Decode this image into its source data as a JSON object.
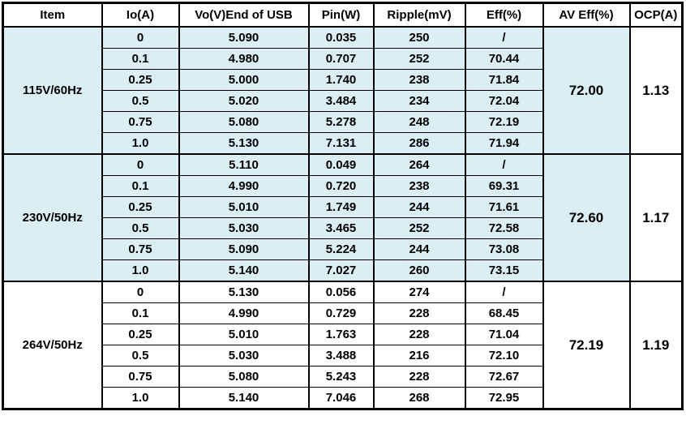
{
  "chart_data": {
    "type": "table",
    "columns": [
      "Item",
      "Io(A)",
      "Vo(V)End of USB",
      "Pin(W)",
      "Ripple(mV)",
      "Eff(%)",
      "AV Eff(%)",
      "OCP(A)"
    ],
    "groups": [
      {
        "item": "115V/60Hz",
        "highlighted": true,
        "av_eff": "72.00",
        "ocp": "1.13",
        "rows": [
          {
            "io": "0",
            "vo": "5.090",
            "pin": "0.035",
            "ripple": "250",
            "eff": "/"
          },
          {
            "io": "0.1",
            "vo": "4.980",
            "pin": "0.707",
            "ripple": "252",
            "eff": "70.44"
          },
          {
            "io": "0.25",
            "vo": "5.000",
            "pin": "1.740",
            "ripple": "238",
            "eff": "71.84"
          },
          {
            "io": "0.5",
            "vo": "5.020",
            "pin": "3.484",
            "ripple": "234",
            "eff": "72.04"
          },
          {
            "io": "0.75",
            "vo": "5.080",
            "pin": "5.278",
            "ripple": "248",
            "eff": "72.19"
          },
          {
            "io": "1.0",
            "vo": "5.130",
            "pin": "7.131",
            "ripple": "286",
            "eff": "71.94"
          }
        ]
      },
      {
        "item": "230V/50Hz",
        "highlighted": true,
        "av_eff": "72.60",
        "ocp": "1.17",
        "rows": [
          {
            "io": "0",
            "vo": "5.110",
            "pin": "0.049",
            "ripple": "264",
            "eff": "/"
          },
          {
            "io": "0.1",
            "vo": "4.990",
            "pin": "0.720",
            "ripple": "238",
            "eff": "69.31"
          },
          {
            "io": "0.25",
            "vo": "5.010",
            "pin": "1.749",
            "ripple": "244",
            "eff": "71.61"
          },
          {
            "io": "0.5",
            "vo": "5.030",
            "pin": "3.465",
            "ripple": "252",
            "eff": "72.58"
          },
          {
            "io": "0.75",
            "vo": "5.090",
            "pin": "5.224",
            "ripple": "244",
            "eff": "73.08"
          },
          {
            "io": "1.0",
            "vo": "5.140",
            "pin": "7.027",
            "ripple": "260",
            "eff": "73.15"
          }
        ]
      },
      {
        "item": "264V/50Hz",
        "highlighted": false,
        "av_eff": "72.19",
        "ocp": "1.19",
        "rows": [
          {
            "io": "0",
            "vo": "5.130",
            "pin": "0.056",
            "ripple": "274",
            "eff": "/"
          },
          {
            "io": "0.1",
            "vo": "4.990",
            "pin": "0.729",
            "ripple": "228",
            "eff": "68.45"
          },
          {
            "io": "0.25",
            "vo": "5.010",
            "pin": "1.763",
            "ripple": "228",
            "eff": "71.04"
          },
          {
            "io": "0.5",
            "vo": "5.030",
            "pin": "3.488",
            "ripple": "216",
            "eff": "72.10"
          },
          {
            "io": "0.75",
            "vo": "5.080",
            "pin": "5.243",
            "ripple": "228",
            "eff": "72.67"
          },
          {
            "io": "1.0",
            "vo": "5.140",
            "pin": "7.046",
            "ripple": "268",
            "eff": "72.95"
          }
        ]
      }
    ]
  },
  "colors": {
    "highlight": "#daeef3",
    "border": "#000000",
    "text": "#000000",
    "background": "#ffffff"
  }
}
